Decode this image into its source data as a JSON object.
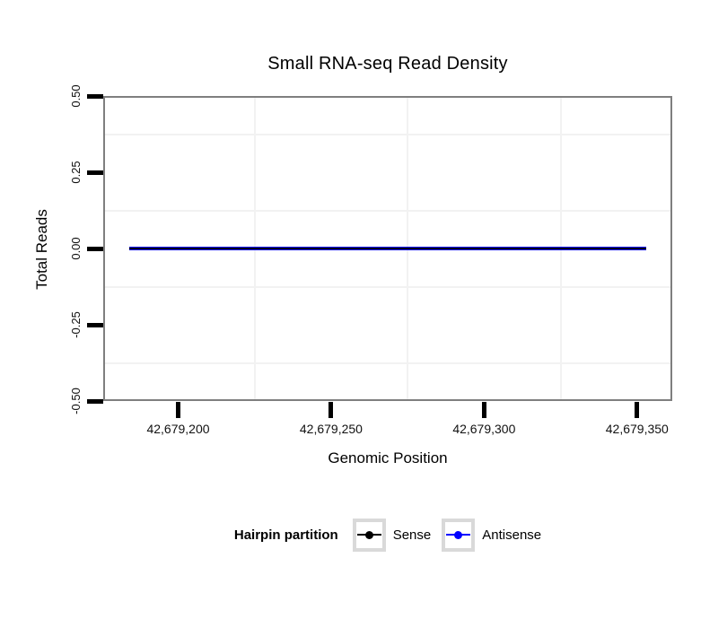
{
  "chart_data": {
    "type": "line",
    "title": "Small RNA-seq Read Density",
    "xlabel": "Genomic Position",
    "ylabel": "Total Reads",
    "xlim": [
      42679175.5,
      42679361.5
    ],
    "ylim": [
      -0.5,
      0.5
    ],
    "x_ticks": {
      "values": [
        42679200,
        42679250,
        42679300,
        42679350
      ],
      "labels": [
        "42,679,200",
        "42,679,250",
        "42,679,300",
        "42,679,350"
      ]
    },
    "y_ticks": {
      "values": [
        0.5,
        0.25,
        0,
        -0.25,
        -0.5
      ],
      "labels": [
        "0.50",
        "0.25",
        "0.00",
        "-0.25",
        "-0.50"
      ]
    },
    "x_minor_gridlines": [
      42679225,
      42679275,
      42679325
    ],
    "y_minor_gridlines": [
      0.375,
      0.125,
      -0.125,
      -0.375
    ],
    "grid": "minor gridlines only, very faint; no major gridlines visible",
    "series": [
      {
        "name": "Sense",
        "color": "#000000",
        "points": [
          {
            "x": 42679184,
            "y": 0
          },
          {
            "x": 42679353,
            "y": 0
          }
        ],
        "description": "constant 0 reads across entire region"
      },
      {
        "name": "Antisense",
        "color": "#0000ff",
        "points": [
          {
            "x": 42679184,
            "y": 0
          },
          {
            "x": 42679353,
            "y": 0
          }
        ],
        "description": "constant 0 reads across entire region"
      }
    ],
    "legend": {
      "title": "Hairpin partition",
      "position": "bottom",
      "entries": [
        {
          "label": "Sense",
          "color": "#000000"
        },
        {
          "label": "Antisense",
          "color": "#0000ff"
        }
      ]
    },
    "colors": {
      "panel_border": "#7f7f7f",
      "minor_gridline": "#f2f2f2",
      "tick_mark": "#000000",
      "legend_key_border": "#d9d9d9",
      "background": "#ffffff"
    }
  }
}
